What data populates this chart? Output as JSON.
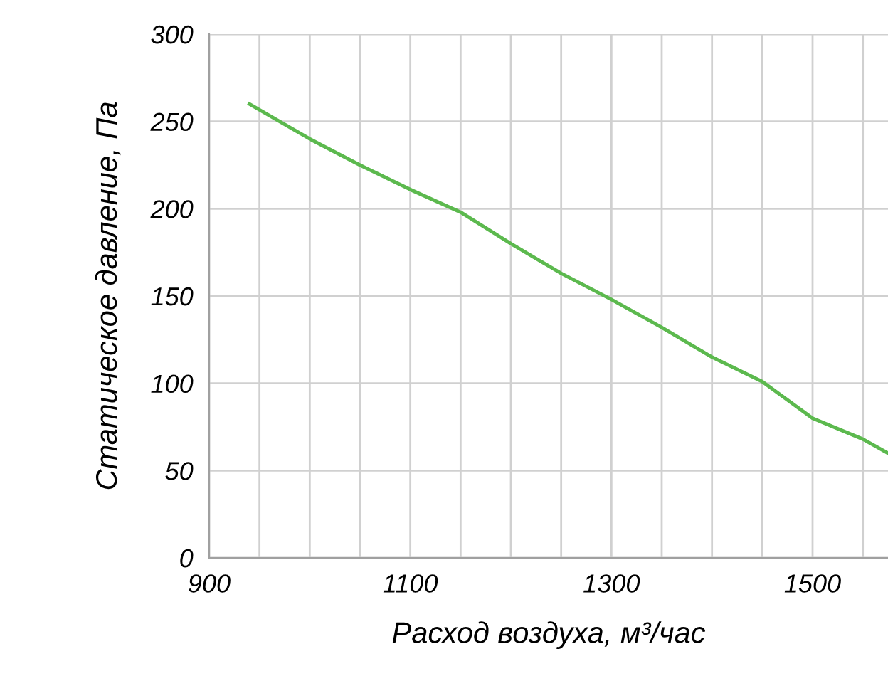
{
  "chart_data": {
    "type": "line",
    "xlabel": "Расход воздуха, м³/час",
    "ylabel": "Статическое давление, Па",
    "series": [
      {
        "color": "#5cb94e",
        "x": [
          940,
          1000,
          1050,
          1100,
          1150,
          1200,
          1250,
          1300,
          1350,
          1400,
          1450,
          1500,
          1550,
          1575
        ],
        "values": [
          260,
          240,
          225,
          211,
          198,
          180,
          163,
          148,
          132,
          115,
          101,
          80,
          68,
          60
        ]
      }
    ],
    "xlim": [
      900,
      1575
    ],
    "ylim": [
      0,
      300
    ],
    "xticks": [
      900,
      {
        "value": 950,
        "label": null
      },
      {
        "value": 1000,
        "label": null
      },
      {
        "value": 1050,
        "label": null
      },
      1100,
      {
        "value": 1150,
        "label": null
      },
      {
        "value": 1200,
        "label": null
      },
      {
        "value": 1250,
        "label": null
      },
      1300,
      {
        "value": 1350,
        "label": null
      },
      {
        "value": 1400,
        "label": null
      },
      {
        "value": 1450,
        "label": null
      },
      1500,
      {
        "value": 1550,
        "label": null
      }
    ],
    "yticks": [
      0,
      50,
      100,
      150,
      200,
      250,
      300
    ],
    "grid": true,
    "legend": false,
    "marker": "none",
    "line_style": "solid"
  }
}
